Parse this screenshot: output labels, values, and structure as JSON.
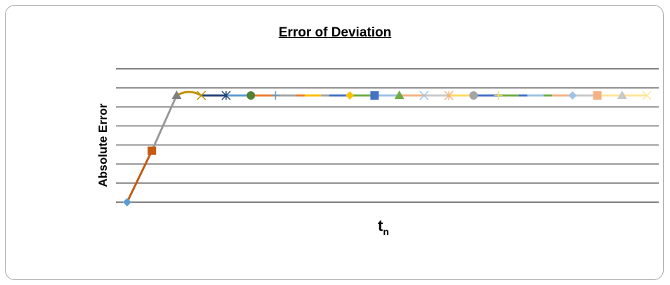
{
  "chart_data": {
    "type": "line",
    "title": "Error of Deviation",
    "xlabel": "t",
    "xlabel_subscript": "n",
    "ylabel": "Absolute Error",
    "ylim": [
      0,
      7
    ],
    "grid": true,
    "gridlines": 8,
    "legend": "none",
    "x": [
      1,
      2,
      3,
      4,
      5,
      6,
      7,
      8,
      9,
      10,
      11,
      12,
      13,
      14,
      15,
      16,
      17,
      18,
      19,
      20,
      21,
      22
    ],
    "y": [
      0,
      2.7,
      5.6,
      5.6,
      5.6,
      5.6,
      5.6,
      5.6,
      5.6,
      5.6,
      5.6,
      5.6,
      5.6,
      5.6,
      5.6,
      5.6,
      5.6,
      5.6,
      5.6,
      5.6,
      5.6,
      5.6
    ],
    "segment_colors": [
      "#c55a11",
      "#999999",
      "#bf9000",
      "#264478",
      "#5b9bd5",
      "#ed7d31",
      "#a5a5a5",
      "#ffc000",
      "#4472c4",
      "#70ad47",
      "#9dc3e6",
      "#f4b183",
      "#c9c9c9",
      "#ffd966",
      "#4472c4",
      "#70ad47",
      "#9dc3e6",
      "#f4b183",
      "#c9c9c9",
      "#ffe699",
      "#ffe699"
    ],
    "markers": [
      {
        "shape": "diamond",
        "color": "#5b9bd5"
      },
      {
        "shape": "square",
        "color": "#c55a11"
      },
      {
        "shape": "triangle",
        "color": "#7f7f7f"
      },
      {
        "shape": "x",
        "color": "#bf9000"
      },
      {
        "shape": "asterisk",
        "color": "#264478"
      },
      {
        "shape": "circle",
        "color": "#548235"
      },
      {
        "shape": "plus",
        "color": "#5b9bd5"
      },
      {
        "shape": "dash",
        "color": "#ed7d31"
      },
      {
        "shape": "dash",
        "color": "#a5a5a5"
      },
      {
        "shape": "diamond",
        "color": "#ffc000"
      },
      {
        "shape": "square",
        "color": "#4472c4"
      },
      {
        "shape": "triangle",
        "color": "#70ad47"
      },
      {
        "shape": "x",
        "color": "#9dc3e6"
      },
      {
        "shape": "asterisk",
        "color": "#f4b183"
      },
      {
        "shape": "circle",
        "color": "#a5a5a5"
      },
      {
        "shape": "plus",
        "color": "#ffd966"
      },
      {
        "shape": "dash",
        "color": "#4472c4"
      },
      {
        "shape": "dash",
        "color": "#70ad47"
      },
      {
        "shape": "diamond",
        "color": "#9dc3e6"
      },
      {
        "shape": "square",
        "color": "#f4b183"
      },
      {
        "shape": "triangle",
        "color": "#c9c9c9"
      },
      {
        "shape": "x",
        "color": "#ffe699"
      }
    ]
  }
}
